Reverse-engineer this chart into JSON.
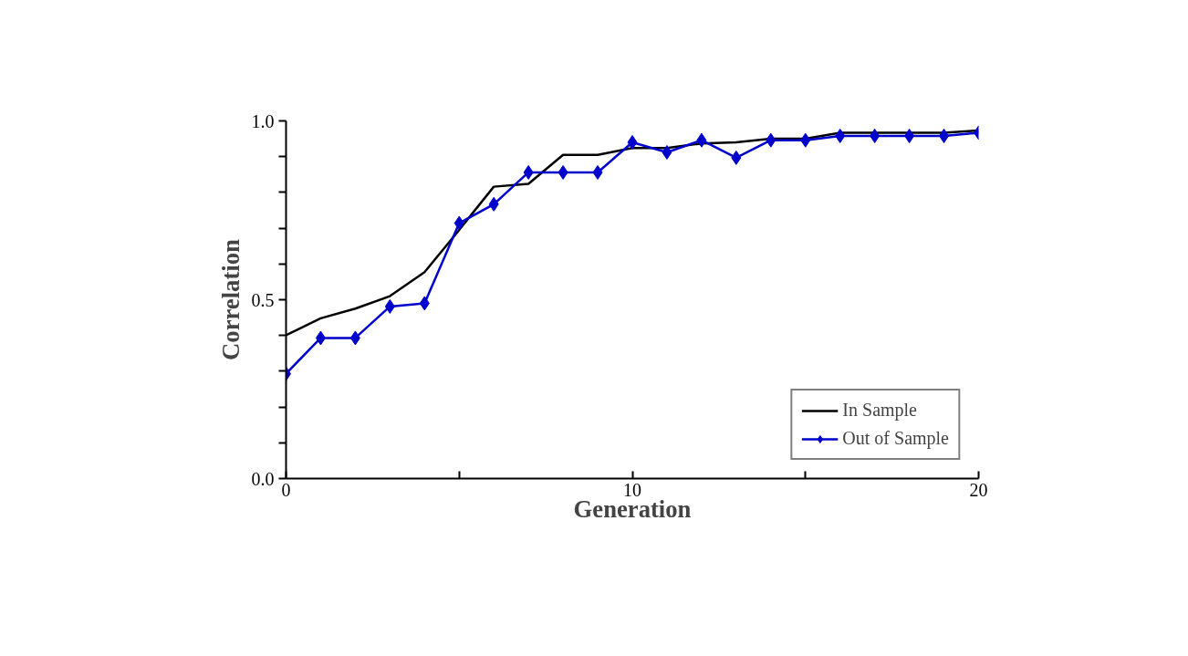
{
  "chart_data": {
    "type": "line",
    "xlabel": "Generation",
    "ylabel": "Correlation",
    "x": [
      0,
      1,
      2,
      3,
      4,
      5,
      6,
      7,
      8,
      9,
      10,
      11,
      12,
      13,
      14,
      15,
      16,
      17,
      18,
      19,
      20
    ],
    "xlim": [
      0,
      20
    ],
    "xticks": [
      0,
      {
        "value": 5,
        "label": null
      },
      10,
      {
        "value": 15,
        "label": null
      },
      20
    ],
    "ylim": [
      0,
      1
    ],
    "yticks": [
      {
        "value": 0,
        "label": "0.0"
      },
      {
        "value": 0.1,
        "label": null
      },
      {
        "value": 0.2,
        "label": null
      },
      {
        "value": 0.3,
        "label": null
      },
      {
        "value": 0.4,
        "label": null
      },
      0.5,
      {
        "value": 0.6,
        "label": null
      },
      {
        "value": 0.7,
        "label": null
      },
      {
        "value": 0.8,
        "label": null
      },
      {
        "value": 0.9,
        "label": null
      },
      {
        "value": 1,
        "label": "1.0"
      }
    ],
    "grid": false,
    "legend": "bottom right",
    "line_style": "solid",
    "series": [
      {
        "name": "In Sample",
        "color": "#000000",
        "marker": "none",
        "values": [
          0.401,
          0.448,
          0.475,
          0.51,
          0.577,
          0.695,
          0.816,
          0.824,
          0.905,
          0.905,
          0.924,
          0.924,
          0.937,
          0.94,
          0.95,
          0.95,
          0.967,
          0.967,
          0.967,
          0.967,
          0.973
        ]
      },
      {
        "name": "Out of Sample",
        "color": "#0000cc",
        "marker": "diamond",
        "values": [
          0.293,
          0.393,
          0.393,
          0.481,
          0.49,
          0.714,
          0.767,
          0.856,
          0.856,
          0.856,
          0.94,
          0.912,
          0.946,
          0.897,
          0.946,
          0.946,
          0.958,
          0.958,
          0.958,
          0.958,
          0.967
        ]
      }
    ]
  }
}
